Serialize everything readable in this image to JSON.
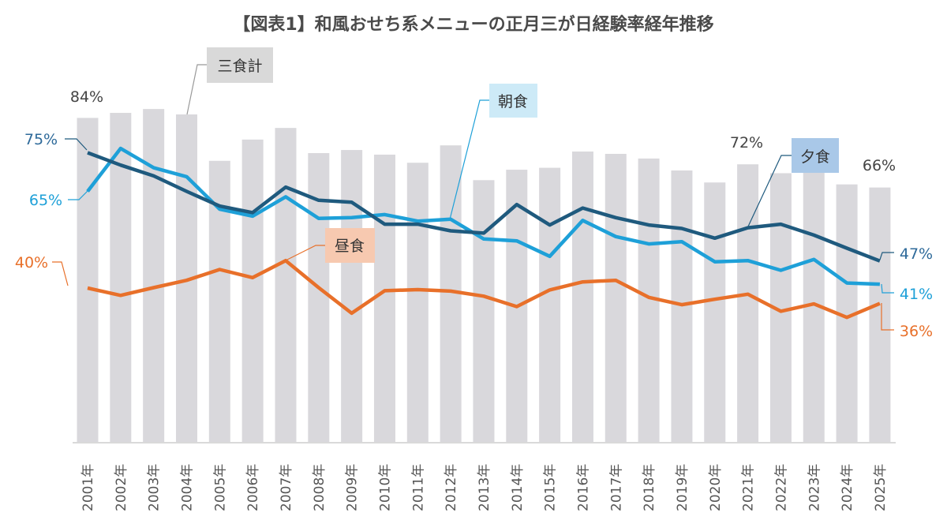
{
  "chart_data": {
    "type": "bar+line",
    "title": "【図表1】和風おせち系メニューの正月三が日経験率経年推移",
    "categories": [
      "2001年",
      "2002年",
      "2003年",
      "2004年",
      "2005年",
      "2006年",
      "2007年",
      "2008年",
      "2009年",
      "2010年",
      "2011年",
      "2012年",
      "2013年",
      "2014年",
      "2015年",
      "2016年",
      "2017年",
      "2018年",
      "2019年",
      "2020年",
      "2021年",
      "2022年",
      "2023年",
      "2024年",
      "2025年"
    ],
    "ylim": [
      0,
      100
    ],
    "grid": false,
    "series": [
      {
        "name": "三食計",
        "kind": "bar",
        "color": "#d9d8dc",
        "values": [
          84,
          85.3,
          86.3,
          84.9,
          72.9,
          78.4,
          81.4,
          74.9,
          75.7,
          74.5,
          72.4,
          76.9,
          67.9,
          70.6,
          71.1,
          75.3,
          74.7,
          73.5,
          70.4,
          67.3,
          72,
          69.7,
          70,
          66.8,
          66
        ]
      },
      {
        "name": "朝食",
        "kind": "line",
        "color": "#1ea0d8",
        "callout_bg": "#cdeaf7",
        "values": [
          65,
          76.1,
          71.1,
          68.8,
          60.4,
          58.6,
          63.6,
          58.0,
          58.2,
          59.0,
          57.3,
          57.8,
          52.7,
          52.2,
          48.2,
          57.5,
          53.3,
          51.4,
          52.0,
          46.8,
          47.1,
          44.6,
          47.4,
          41.3,
          41
        ]
      },
      {
        "name": "昼食",
        "kind": "line",
        "color": "#e8702a",
        "callout_bg": "#f7c9b0",
        "values": [
          40,
          38.1,
          40.1,
          42.0,
          44.8,
          42.7,
          47.1,
          40.1,
          33.5,
          39.3,
          39.6,
          39.2,
          37.9,
          35.2,
          39.5,
          41.6,
          42.0,
          37.6,
          35.7,
          37.1,
          38.4,
          34.0,
          35.9,
          32.4,
          36
        ]
      },
      {
        "name": "夕食",
        "kind": "line",
        "color": "#1f5a7e",
        "callout_bg": "#a9c8e8",
        "values": [
          75,
          71.8,
          69.0,
          65.0,
          61.2,
          59.5,
          66.1,
          62.7,
          62.2,
          56.5,
          56.5,
          54.8,
          54.2,
          61.6,
          56.3,
          60.7,
          58.2,
          56.3,
          55.4,
          52.9,
          55.6,
          56.5,
          53.7,
          50.3,
          47
        ]
      }
    ],
    "data_labels": {
      "total_2001": "84%",
      "total_2021": "72%",
      "total_2025": "66%",
      "dinner_2001": "75%",
      "breakfast_2001": "65%",
      "lunch_2001": "40%",
      "dinner_2025": "47%",
      "breakfast_2025": "41%",
      "lunch_2025": "36%"
    },
    "label_colors": {
      "total": "#444444",
      "dinner": "#2e6a9a",
      "breakfast": "#1ea0d8",
      "lunch": "#e8702a"
    }
  }
}
